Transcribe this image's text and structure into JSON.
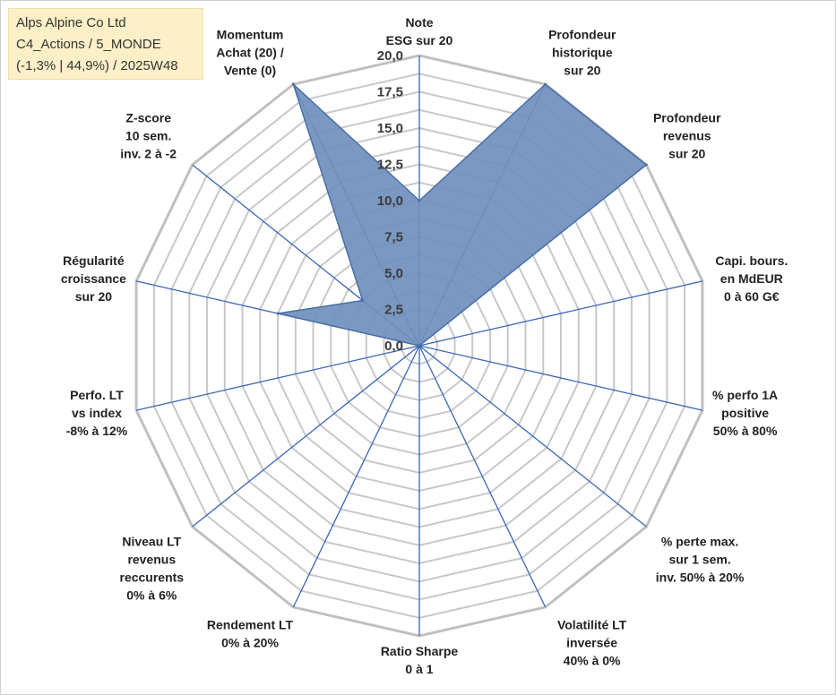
{
  "title_box": {
    "line1": "Alps Alpine Co Ltd",
    "line2": "C4_Actions / 5_MONDE",
    "line3": "(-1,3% | 44,9%) / 2025W48"
  },
  "chart_data": {
    "type": "radar",
    "rmin": 0,
    "rmax": 20,
    "grid_step": 1.25,
    "tick_labels": [
      "0,0",
      "2,5",
      "5,0",
      "7,5",
      "10,0",
      "12,5",
      "15,0",
      "17,5",
      "20,0"
    ],
    "tick_values": [
      0,
      2.5,
      5,
      7.5,
      10,
      12.5,
      15,
      17.5,
      20
    ],
    "axes": [
      {
        "lines": [
          "Note",
          "ESG sur 20"
        ]
      },
      {
        "lines": [
          "Profondeur",
          "historique",
          "sur 20"
        ]
      },
      {
        "lines": [
          "Profondeur",
          "revenus",
          "sur 20"
        ]
      },
      {
        "lines": [
          "Capi. bours.",
          "en MdEUR",
          "0 à 60 G€"
        ]
      },
      {
        "lines": [
          "% perfo 1A",
          "positive",
          "50% à 80%"
        ]
      },
      {
        "lines": [
          "% perte max.",
          "sur 1 sem.",
          "inv. 50% à 20%"
        ]
      },
      {
        "lines": [
          "Volatilité LT",
          "inversée",
          "40% à 0%"
        ]
      },
      {
        "lines": [
          "Ratio Sharpe",
          "0 à 1"
        ]
      },
      {
        "lines": [
          "Rendement LT",
          "0% à 20%"
        ]
      },
      {
        "lines": [
          "Niveau LT",
          "revenus",
          "reccurents",
          "0% à 6%"
        ]
      },
      {
        "lines": [
          "Perfo. LT",
          "vs index",
          "-8% à 12%"
        ]
      },
      {
        "lines": [
          "Régularité",
          "croissance",
          "sur 20"
        ]
      },
      {
        "lines": [
          "Z-score",
          "10 sem.",
          "inv. 2 à -2"
        ]
      },
      {
        "lines": [
          "Momentum",
          "Achat (20) /",
          "Vente (0)"
        ]
      }
    ],
    "values": [
      10,
      20,
      20,
      0,
      0,
      0,
      0,
      0,
      0,
      0,
      0,
      10,
      5,
      20
    ],
    "colors": {
      "fill": "#6f8fbd",
      "stroke": "#4a6fa5",
      "spoke": "#3a66b8",
      "grid": "#c8c8c8",
      "outer_ring": "#c0c0c0"
    }
  }
}
